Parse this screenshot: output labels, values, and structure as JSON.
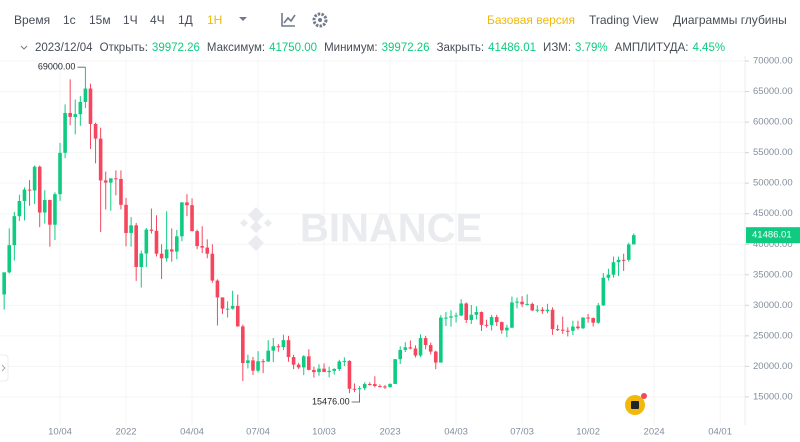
{
  "toolbar": {
    "intervals": [
      "Время",
      "1с",
      "15м",
      "1Ч",
      "4Ч",
      "1Д",
      "1Н"
    ],
    "active": 6,
    "views": [
      "Базовая версия",
      "Trading View",
      "Диаграммы глубины"
    ],
    "active_view": 0
  },
  "info": {
    "date": "2023/12/04",
    "fields": [
      {
        "label": "Открыть:",
        "value": "39972.26"
      },
      {
        "label": "Максимум:",
        "value": "41750.00"
      },
      {
        "label": "Минимум:",
        "value": "39972.26"
      },
      {
        "label": "Закрыть:",
        "value": "41486.01"
      },
      {
        "label": "ИЗМ:",
        "value": "3.79%"
      },
      {
        "label": "АМПЛИТУДА:",
        "value": "4.45%"
      }
    ]
  },
  "chart_data": {
    "type": "candlestick",
    "watermark": "BINANCE",
    "up_color": "#0ecb81",
    "down_color": "#f6465d",
    "grid": true,
    "open": [
      31780,
      35400,
      39850,
      44600,
      47080,
      48950,
      48800,
      52700,
      45200,
      47250,
      43200,
      48200,
      54970,
      61500,
      60850,
      61300,
      63300,
      65500,
      59700,
      57300,
      50450,
      50100,
      50800,
      50700,
      46450,
      41850,
      43100,
      36280,
      38480,
      42400,
      42200,
      38450,
      37700,
      39150,
      38800,
      41300,
      46850,
      46400,
      42150,
      39700,
      39450,
      38450,
      34050,
      31300,
      29450,
      29450,
      29900,
      26550,
      20550,
      20980,
      19300,
      20850,
      20780,
      22580,
      23300,
      23170,
      24300,
      21520,
      20280,
      19830,
      21650,
      19420,
      19060,
      19630,
      19070,
      19260,
      19570,
      20810,
      20900,
      16330,
      16280,
      16430,
      17120,
      17100,
      16780,
      16700,
      16620,
      17130,
      21180,
      22700,
      23120,
      22930,
      21780,
      24630,
      23490,
      22420,
      20630,
      27990,
      27990,
      28190,
      28330,
      30300,
      27600,
      28450,
      28900,
      26800,
      26750,
      28080,
      27250,
      25900,
      26340,
      30470,
      30590,
      30170,
      30230,
      29170,
      29280,
      29040,
      29280,
      26100,
      26010,
      25840,
      25830,
      26520,
      26250,
      27990,
      27920,
      27150,
      29990,
      34520,
      35010,
      37060,
      37450,
      37440,
      39972.26
    ],
    "high": [
      35400,
      42600,
      45300,
      48100,
      49300,
      50500,
      52900,
      52900,
      48850,
      47300,
      48500,
      56600,
      62900,
      67000,
      63700,
      64250,
      69000,
      66300,
      59900,
      59100,
      51900,
      50500,
      52100,
      52100,
      47600,
      44450,
      43500,
      38950,
      42650,
      45850,
      44750,
      40000,
      45400,
      42600,
      42350,
      46900,
      48200,
      47500,
      42400,
      42950,
      40800,
      40000,
      34250,
      31300,
      30650,
      32400,
      31750,
      26850,
      21900,
      21550,
      22500,
      21200,
      24300,
      24650,
      23650,
      25200,
      25000,
      21900,
      20580,
      21850,
      22800,
      19950,
      20350,
      20480,
      19950,
      19700,
      21080,
      21480,
      21000,
      17200,
      16770,
      17400,
      17400,
      18390,
      17050,
      16950,
      17200,
      21200,
      23300,
      23950,
      24250,
      23450,
      25250,
      25000,
      23890,
      22580,
      28400,
      28900,
      29200,
      28800,
      31000,
      30480,
      30050,
      29850,
      29000,
      27650,
      28450,
      28450,
      27350,
      26800,
      31430,
      31290,
      31500,
      31800,
      30440,
      29990,
      29700,
      30250,
      29680,
      26800,
      28150,
      26400,
      27480,
      27480,
      28050,
      28580,
      28000,
      30380,
      35280,
      35990,
      37980,
      37980,
      38450,
      40250,
      41750
    ],
    "low": [
      29300,
      35200,
      37330,
      43800,
      43900,
      46300,
      46600,
      42800,
      43400,
      39600,
      40700,
      47100,
      54100,
      59500,
      58000,
      59400,
      62300,
      55600,
      53250,
      42000,
      45700,
      45500,
      48000,
      45700,
      39650,
      39600,
      34000,
      32900,
      36250,
      41750,
      38000,
      34300,
      37150,
      37150,
      37550,
      40500,
      44600,
      42100,
      39200,
      38550,
      37700,
      33700,
      26700,
      28600,
      28000,
      29300,
      26500,
      17600,
      19650,
      18600,
      19000,
      18900,
      20750,
      20700,
      22400,
      22650,
      20750,
      19550,
      19550,
      18550,
      19350,
      18150,
      18460,
      19200,
      18200,
      18650,
      19250,
      20050,
      15600,
      15800,
      15476,
      16100,
      16850,
      16550,
      16550,
      16300,
      16500,
      17100,
      20400,
      22350,
      22800,
      21450,
      21530,
      22800,
      21950,
      19550,
      20600,
      26600,
      26500,
      27200,
      28220,
      27100,
      26950,
      27680,
      25800,
      26350,
      25880,
      26600,
      25350,
      24800,
      26250,
      29500,
      29700,
      29950,
      29050,
      28850,
      28600,
      28700,
      25170,
      25800,
      25330,
      24900,
      25130,
      26000,
      26120,
      27160,
      26530,
      26960,
      29900,
      34050,
      34530,
      34800,
      35630,
      37150,
      39972.26
    ],
    "close": [
      35400,
      39850,
      44600,
      47080,
      48950,
      48800,
      52700,
      45200,
      47250,
      43200,
      48200,
      54970,
      61500,
      60850,
      61300,
      63300,
      65500,
      59700,
      57300,
      50450,
      50100,
      50800,
      50700,
      46450,
      41850,
      43100,
      36280,
      38480,
      42400,
      42200,
      38450,
      37700,
      39150,
      38800,
      41300,
      46850,
      46400,
      42150,
      39700,
      39450,
      38450,
      34050,
      31300,
      29450,
      29450,
      29900,
      26550,
      20550,
      20980,
      19300,
      20850,
      20780,
      22580,
      23300,
      23170,
      24300,
      21520,
      20280,
      19830,
      21650,
      19420,
      19060,
      19630,
      19070,
      19260,
      19570,
      20810,
      20900,
      16330,
      16280,
      16430,
      17120,
      17100,
      16780,
      16700,
      16620,
      17130,
      21180,
      22700,
      23120,
      22930,
      21780,
      24630,
      23490,
      22420,
      20630,
      27990,
      27990,
      28190,
      28330,
      30300,
      27600,
      28450,
      28900,
      26800,
      26750,
      28080,
      27250,
      25900,
      26340,
      30470,
      30590,
      30170,
      30230,
      29170,
      29280,
      29040,
      29280,
      26100,
      26010,
      25840,
      25830,
      26520,
      26250,
      27990,
      27920,
      27150,
      29990,
      34520,
      35010,
      37060,
      37450,
      37440,
      39972.26,
      41486.01
    ],
    "xlim": [
      -0.82,
      145.9
    ],
    "xticks": [
      {
        "value": 11,
        "label": "10/04"
      },
      {
        "value": 24,
        "label": "2022"
      },
      {
        "value": 37,
        "label": "04/04"
      },
      {
        "value": 50,
        "label": "07/04"
      },
      {
        "value": 63,
        "label": "10/03"
      },
      {
        "value": 76,
        "label": "2023"
      },
      {
        "value": 89,
        "label": "04/03"
      },
      {
        "value": 102,
        "label": "07/03"
      },
      {
        "value": 115,
        "label": "10/02"
      },
      {
        "value": 128,
        "label": "2024"
      },
      {
        "value": 141,
        "label": "04/01"
      }
    ],
    "ylim": [
      10400,
      70500
    ],
    "yticks": [
      {
        "value": 15000,
        "label": "15000.00"
      },
      {
        "value": 20000,
        "label": "20000.00"
      },
      {
        "value": 25000,
        "label": "25000.00"
      },
      {
        "value": 30000,
        "label": "30000.00"
      },
      {
        "value": 35000,
        "label": "35000.00"
      },
      {
        "value": 40000,
        "label": "40000.00"
      },
      {
        "value": 45000,
        "label": "45000.00"
      },
      {
        "value": 50000,
        "label": "50000.00"
      },
      {
        "value": 55000,
        "label": "55000.00"
      },
      {
        "value": 60000,
        "label": "60000.00"
      },
      {
        "value": 65000,
        "label": "65000.00"
      },
      {
        "value": 70000,
        "label": "70000.00"
      }
    ],
    "annotations": [
      {
        "value": 69000,
        "label": "69000.00"
      },
      {
        "value": 15476,
        "label": "15476.00"
      }
    ],
    "last_price": {
      "value": 41486.01,
      "label": "41486.01"
    }
  }
}
